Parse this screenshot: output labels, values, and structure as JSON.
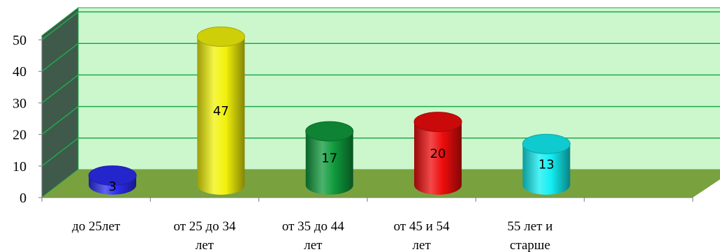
{
  "chart_data": {
    "type": "bar",
    "style": "3d-cylinder",
    "categories": [
      [
        "до 25лет"
      ],
      [
        "от 25 до 34",
        "лет"
      ],
      [
        "от 35 до 44",
        "лет"
      ],
      [
        "от 45 и 54",
        "лет"
      ],
      [
        "55 лет и",
        "старше"
      ]
    ],
    "values": [
      3,
      47,
      17,
      20,
      13
    ],
    "bar_colors": [
      "#2c2cf0",
      "#f2f20a",
      "#0f9a3c",
      "#ee0c0c",
      "#12eef2"
    ],
    "ylim": [
      0,
      50
    ],
    "yticks": [
      0,
      10,
      20,
      30,
      40,
      50
    ],
    "grid": true,
    "wall_color": "#ccf7cc",
    "side_wall_color": "#3f5a4a",
    "floor_color": "#79a23f",
    "grid_color": "#21a84f"
  }
}
